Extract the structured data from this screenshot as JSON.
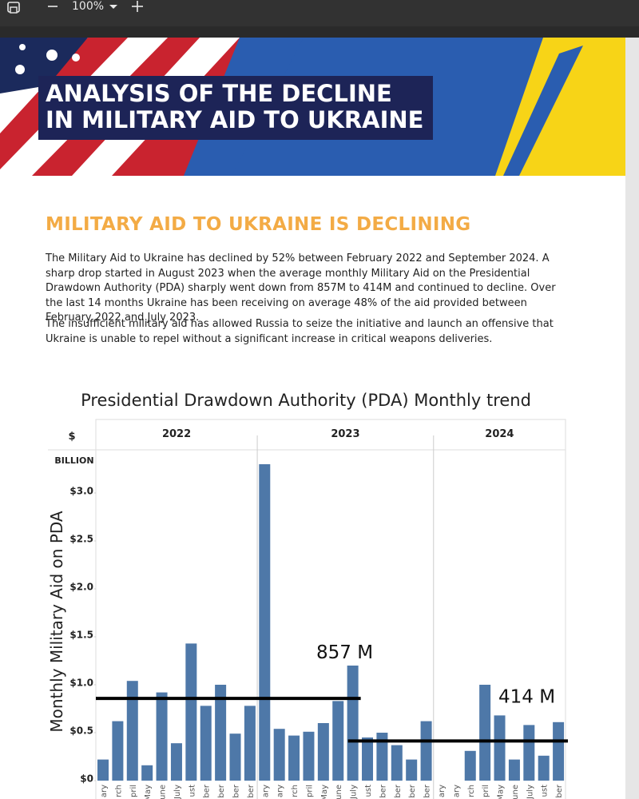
{
  "toolbar": {
    "zoom": "100%"
  },
  "banner": {
    "title_lines": [
      "ANALYSIS OF THE DECLINE",
      "IN MILITARY AID TO UKRAINE"
    ]
  },
  "section": {
    "heading": "MILITARY AID TO UKRAINE IS DECLINING",
    "paragraphs": [
      "The Military Aid to Ukraine has declined by 52% between February 2022 and September 2024. A sharp drop started in August 2023 when the average monthly Military Aid on the Presidential Drawdown Authority (PDA) sharply went down from 857M  to 414M and continued to decline. Over the last 14 months Ukraine has been receiving on average 48% of the aid provided between February 2022 and July 2023.",
      "The insufficient military aid has allowed Russia to seize the initiative and launch an offensive that Ukraine is unable to repel without a significant increase in critical weapons deliveries."
    ]
  },
  "chart_data": {
    "type": "bar",
    "title": "Presidential Drawdown Authority (PDA) Monthly trend",
    "y_axis_label": "Monthly Military Aid on PDA",
    "unit_label": "$",
    "unit_sub": "BILLION",
    "years": [
      "2022",
      "2023",
      "2024"
    ],
    "categories": [
      "ary",
      "rch",
      "pril",
      "May",
      "une",
      "July",
      "ust",
      "ber",
      "ber",
      "ber",
      "ber",
      "ary",
      "ary",
      "rch",
      "pril",
      "May",
      "une",
      "July",
      "ust",
      "ber",
      "ber",
      "ber",
      "ber",
      "ary",
      "ary",
      "rch",
      "pril",
      "May",
      "une",
      "July",
      "ust",
      "ber"
    ],
    "values": [
      0.22,
      0.62,
      1.04,
      0.16,
      0.92,
      0.39,
      1.43,
      0.78,
      1.0,
      0.49,
      0.78,
      3.3,
      0.54,
      0.47,
      0.51,
      0.6,
      0.83,
      1.2,
      0.45,
      0.5,
      0.37,
      0.22,
      0.62,
      null,
      null,
      0.31,
      1.0,
      0.68,
      0.22,
      0.58,
      0.26,
      0.61
    ],
    "color": "#4e78a8",
    "ylim": [
      0,
      3.45
    ],
    "yticks": [
      {
        "value": 0,
        "label": "$0"
      },
      {
        "value": 0.5,
        "label": "$0.5"
      },
      {
        "value": 1.0,
        "label": "$1.0"
      },
      {
        "value": 1.5,
        "label": "$1.5"
      },
      {
        "value": 2.0,
        "label": "$2.0"
      },
      {
        "value": 2.5,
        "label": "$2.5"
      },
      {
        "value": 3.0,
        "label": "$3.0"
      }
    ],
    "reference_lines": [
      {
        "label": "857 M",
        "value": 0.857
      },
      {
        "label": "414 M",
        "value": 0.414
      }
    ]
  }
}
